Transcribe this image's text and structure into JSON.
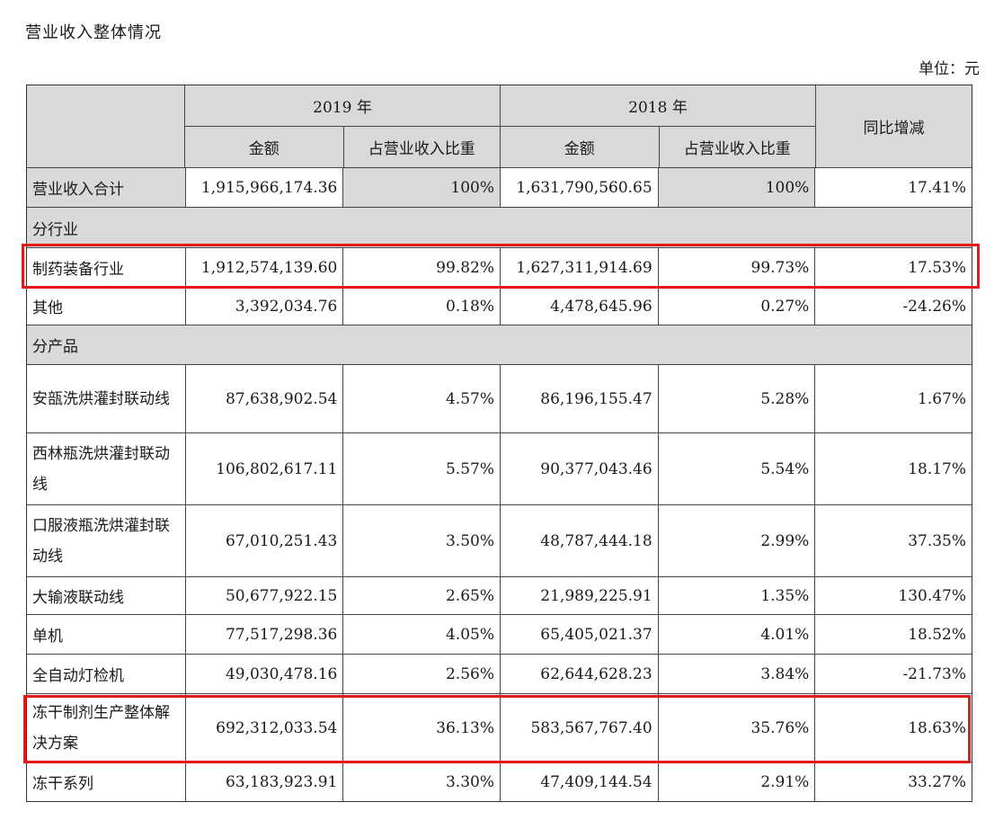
{
  "title": "营业收入整体情况",
  "unit": "单位：元",
  "header": {
    "year_2019": "2019 年",
    "year_2018": "2018 年",
    "amount": "金额",
    "ratio": "占营业收入比重",
    "yoy": "同比增减"
  },
  "total": {
    "label": "营业收入合计",
    "amt2019": "1,915,966,174.36",
    "ratio2019": "100%",
    "amt2018": "1,631,790,560.65",
    "ratio2018": "100%",
    "yoy": "17.41%"
  },
  "section_industry": "分行业",
  "industry": [
    {
      "label": "制药装备行业",
      "amt2019": "1,912,574,139.60",
      "ratio2019": "99.82%",
      "amt2018": "1,627,311,914.69",
      "ratio2018": "99.73%",
      "yoy": "17.53%"
    },
    {
      "label": "其他",
      "amt2019": "3,392,034.76",
      "ratio2019": "0.18%",
      "amt2018": "4,478,645.96",
      "ratio2018": "0.27%",
      "yoy": "-24.26%"
    }
  ],
  "section_product": "分产品",
  "products": [
    {
      "label": "安瓿洗烘灌封联动线",
      "amt2019": "87,638,902.54",
      "ratio2019": "4.57%",
      "amt2018": "86,196,155.47",
      "ratio2018": "5.28%",
      "yoy": "1.67%"
    },
    {
      "label": "西林瓶洗烘灌封联动线",
      "amt2019": "106,802,617.11",
      "ratio2019": "5.57%",
      "amt2018": "90,377,043.46",
      "ratio2018": "5.54%",
      "yoy": "18.17%"
    },
    {
      "label": "口服液瓶洗烘灌封联动线",
      "amt2019": "67,010,251.43",
      "ratio2019": "3.50%",
      "amt2018": "48,787,444.18",
      "ratio2018": "2.99%",
      "yoy": "37.35%"
    },
    {
      "label": "大输液联动线",
      "amt2019": "50,677,922.15",
      "ratio2019": "2.65%",
      "amt2018": "21,989,225.91",
      "ratio2018": "1.35%",
      "yoy": "130.47%"
    },
    {
      "label": "单机",
      "amt2019": "77,517,298.36",
      "ratio2019": "4.05%",
      "amt2018": "65,405,021.37",
      "ratio2018": "4.01%",
      "yoy": "18.52%"
    },
    {
      "label": "全自动灯检机",
      "amt2019": "49,030,478.16",
      "ratio2019": "2.56%",
      "amt2018": "62,644,628.23",
      "ratio2018": "3.84%",
      "yoy": "-21.73%"
    },
    {
      "label": "冻干制剂生产整体解决方案",
      "amt2019": "692,312,033.54",
      "ratio2019": "36.13%",
      "amt2018": "583,567,767.40",
      "ratio2018": "35.76%",
      "yoy": "18.63%"
    },
    {
      "label": "冻干系列",
      "amt2019": "63,183,923.91",
      "ratio2019": "3.30%",
      "amt2018": "47,409,144.54",
      "ratio2018": "2.91%",
      "yoy": "33.27%"
    }
  ],
  "highlight_color": "#e01b1b",
  "shade_color": "#d9d9d9"
}
